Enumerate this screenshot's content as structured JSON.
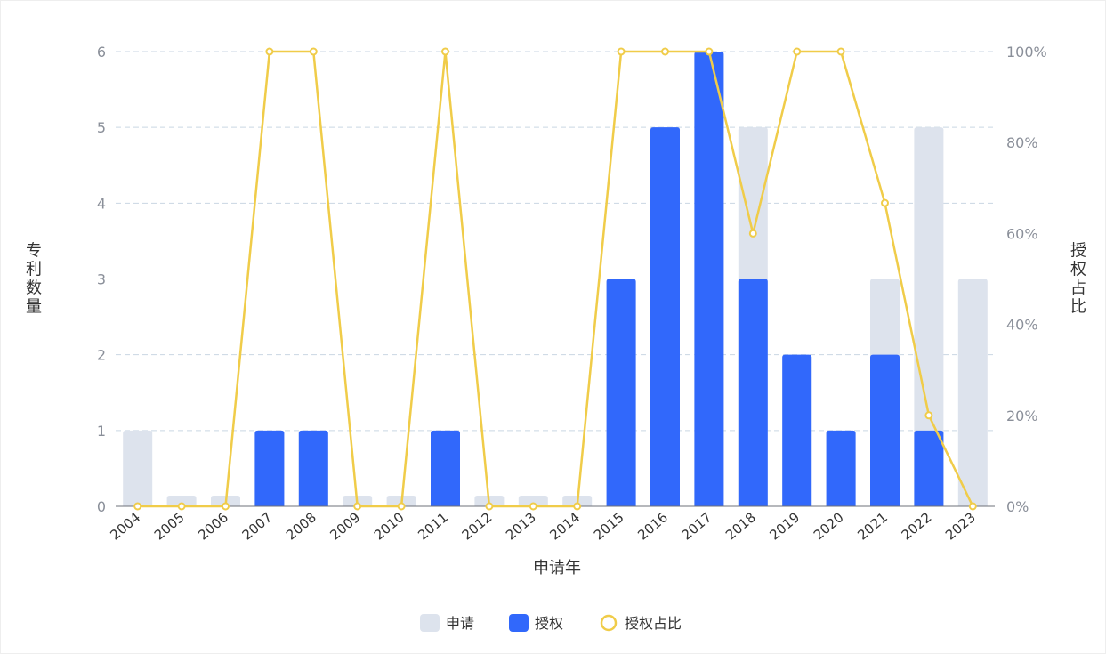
{
  "chart_data": {
    "type": "bar",
    "categories": [
      "2004",
      "2005",
      "2006",
      "2007",
      "2008",
      "2009",
      "2010",
      "2011",
      "2012",
      "2013",
      "2014",
      "2015",
      "2016",
      "2017",
      "2018",
      "2019",
      "2020",
      "2021",
      "2022",
      "2023"
    ],
    "series": [
      {
        "name": "申请",
        "type": "bar",
        "color": "#dde3ed",
        "values": [
          1,
          0,
          0,
          1,
          1,
          0,
          0,
          1,
          0,
          0,
          0,
          3,
          5,
          6,
          5,
          2,
          1,
          3,
          5,
          3
        ]
      },
      {
        "name": "授权",
        "type": "bar",
        "color": "#3168fb",
        "values": [
          0,
          0,
          0,
          1,
          1,
          0,
          0,
          1,
          0,
          0,
          0,
          3,
          5,
          6,
          3,
          2,
          1,
          2,
          1,
          0
        ]
      },
      {
        "name": "授权占比",
        "type": "line",
        "color": "#f0cc49",
        "axis": "right",
        "values": [
          0,
          0,
          0,
          100,
          100,
          0,
          0,
          100,
          0,
          0,
          0,
          100,
          100,
          100,
          60,
          100,
          100,
          66.7,
          20,
          0
        ]
      }
    ],
    "xlabel": "申请年",
    "ylabel": "专利数量",
    "y2label": "授权占比",
    "ylim": [
      0,
      6
    ],
    "y2lim": [
      0,
      100
    ],
    "yticks": [
      "0",
      "1",
      "2",
      "3",
      "4",
      "5",
      "6"
    ],
    "y2ticks": [
      "0%",
      "20%",
      "40%",
      "60%",
      "80%",
      "100%"
    ],
    "grid": true,
    "legend_position": "bottom-center"
  }
}
